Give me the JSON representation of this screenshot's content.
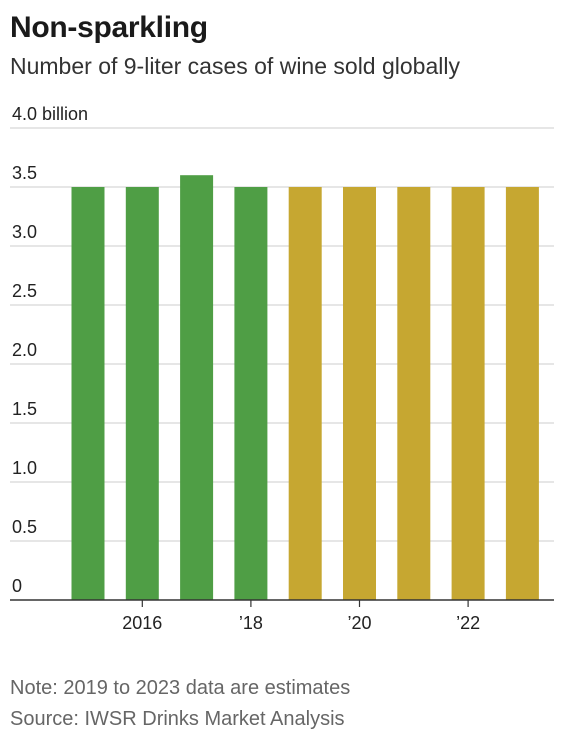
{
  "chart_data": {
    "type": "bar",
    "title": "Non-sparkling",
    "subtitle": "Number of 9-liter cases of wine sold globally",
    "categories": [
      "2015",
      "2016",
      "2017",
      "2018",
      "2019",
      "2020",
      "2021",
      "2022",
      "2023"
    ],
    "values": [
      3.5,
      3.5,
      3.6,
      3.5,
      3.5,
      3.5,
      3.5,
      3.5,
      3.5
    ],
    "estimate_from_index": 4,
    "x_tick_labels": [
      "",
      "2016",
      "",
      "’18",
      "",
      "’20",
      "",
      "’22",
      ""
    ],
    "y_ticks": [
      {
        "value": 0,
        "label": "0"
      },
      {
        "value": 0.5,
        "label": "0.5"
      },
      {
        "value": 1.0,
        "label": "1.0"
      },
      {
        "value": 1.5,
        "label": "1.5"
      },
      {
        "value": 2.0,
        "label": "2.0"
      },
      {
        "value": 2.5,
        "label": "2.5"
      },
      {
        "value": 3.0,
        "label": "3.0"
      },
      {
        "value": 3.5,
        "label": "3.5"
      },
      {
        "value": 4.0,
        "label": "4.0 billion"
      }
    ],
    "ylim": [
      0,
      4.0
    ],
    "xlabel": "",
    "ylabel": "",
    "grid": true,
    "colors": {
      "actual": "#4f9e45",
      "estimate": "#c6a731",
      "grid": "#cccccc",
      "axis": "#333333"
    }
  },
  "notes": {
    "note": "Note: 2019 to 2023 data are estimates",
    "source": "Source: IWSR Drinks Market Analysis"
  }
}
